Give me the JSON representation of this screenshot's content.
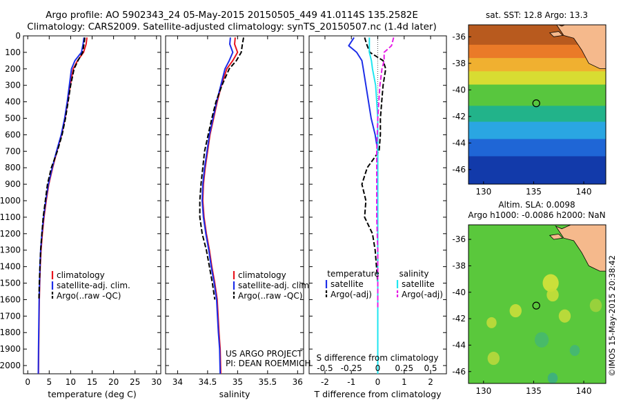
{
  "header": {
    "line1": "Argo profile: AO 5902343_24 05-May-2015 20150505_449 41.0114S 135.2582E",
    "line2": "Climatology: CARS2009. Satellite-adjusted climatology: synTS_20150507.nc (1.4d later)"
  },
  "credits": {
    "project": "US ARGO PROJECT",
    "pi": "PI: DEAN ROEMMICH",
    "stamp": "©IMOS 15-May-2015 20:38:42"
  },
  "colors": {
    "climatology": "#e8141e",
    "satellite": "#1c2de8",
    "argo": "#000000",
    "sal_satellite": "#1ee6f0",
    "sal_argo": "#e61ee6",
    "land": "#f5b98c",
    "background": "#ffffff"
  },
  "chart_data": [
    {
      "type": "line",
      "name": "temperature-profile",
      "xlabel": "temperature (deg C)",
      "xlim": [
        -1,
        31
      ],
      "xticks": [
        0,
        5,
        10,
        15,
        20,
        25,
        30
      ],
      "xtick_labels": [
        "0",
        "5",
        "10",
        "15",
        "20",
        "25",
        "30"
      ],
      "ylim": [
        2050,
        0
      ],
      "yticks": [
        0,
        100,
        200,
        300,
        400,
        500,
        600,
        700,
        800,
        900,
        1000,
        1100,
        1200,
        1300,
        1400,
        1500,
        1600,
        1700,
        1800,
        1900,
        2000
      ],
      "ytick_labels": [
        "0",
        "100",
        "200",
        "300",
        "400",
        "500",
        "600",
        "700",
        "800",
        "900",
        "1000",
        "1100",
        "1200",
        "1300",
        "1400",
        "1500",
        "1600",
        "1700",
        "1800",
        "1900",
        "2000"
      ],
      "legend": {
        "placement": "lower-center",
        "entries": [
          "climatology",
          "satellite-adj. clim.",
          "Argo(..raw -QC)"
        ]
      },
      "series": [
        {
          "name": "climatology",
          "style": "solid",
          "color": "#e8141e",
          "x": [
            13.8,
            13.6,
            13.0,
            11.6,
            10.6,
            9.9,
            9.3,
            8.7,
            7.9,
            6.8,
            5.8,
            4.9,
            4.3,
            3.8,
            3.4,
            3.1,
            2.9,
            2.8,
            2.7,
            2.6,
            2.55,
            2.5
          ],
          "y": [
            10,
            50,
            100,
            150,
            200,
            300,
            400,
            500,
            600,
            700,
            800,
            900,
            1000,
            1100,
            1200,
            1300,
            1400,
            1500,
            1600,
            1800,
            1900,
            2050
          ]
        },
        {
          "name": "satellite-adj. clim.",
          "style": "solid",
          "color": "#1c2de8",
          "x": [
            13.1,
            12.9,
            12.5,
            11.0,
            10.2,
            9.7,
            9.2,
            8.6,
            7.8,
            6.7,
            5.7,
            4.8,
            4.2,
            3.7,
            3.3,
            3.0,
            2.85,
            2.75,
            2.65,
            2.55,
            2.5,
            2.45
          ],
          "y": [
            10,
            50,
            100,
            150,
            200,
            300,
            400,
            500,
            600,
            700,
            800,
            900,
            1000,
            1100,
            1200,
            1300,
            1400,
            1500,
            1600,
            1800,
            1900,
            2050
          ]
        },
        {
          "name": "Argo(..raw -QC)",
          "style": "dashed",
          "color": "#000000",
          "x": [
            13.3,
            13.1,
            12.8,
            11.7,
            10.8,
            10.0,
            9.4,
            8.8,
            8.0,
            6.9,
            5.5,
            4.6,
            4.1,
            3.6,
            3.3,
            3.0,
            2.85,
            2.7,
            2.6
          ],
          "y": [
            10,
            50,
            100,
            150,
            200,
            300,
            400,
            500,
            600,
            700,
            800,
            900,
            1000,
            1100,
            1200,
            1300,
            1400,
            1500,
            1600
          ]
        }
      ]
    },
    {
      "type": "line",
      "name": "salinity-profile",
      "xlabel": "salinity",
      "xlim": [
        33.8,
        36.1
      ],
      "xticks": [
        34,
        34.5,
        35,
        35.5,
        36
      ],
      "xtick_labels": [
        "34",
        "34.5",
        "35",
        "35.5",
        "36"
      ],
      "ylim": [
        2050,
        0
      ],
      "legend": {
        "placement": "lower-center",
        "entries": [
          "climatology",
          "satellite-adj. clim.",
          "Argo(..raw -QC)"
        ]
      },
      "series": [
        {
          "name": "climatology",
          "style": "solid",
          "color": "#e8141e",
          "x": [
            34.96,
            34.95,
            35.0,
            34.92,
            34.82,
            34.73,
            34.66,
            34.6,
            34.54,
            34.5,
            34.46,
            34.43,
            34.42,
            34.44,
            34.48,
            34.53,
            34.57,
            34.62,
            34.66,
            34.69,
            34.71,
            34.72
          ],
          "y": [
            10,
            50,
            100,
            150,
            200,
            300,
            400,
            500,
            600,
            700,
            800,
            900,
            1000,
            1100,
            1200,
            1300,
            1400,
            1500,
            1600,
            1800,
            1900,
            2050
          ]
        },
        {
          "name": "satellite-adj. clim.",
          "style": "solid",
          "color": "#1c2de8",
          "x": [
            34.88,
            34.87,
            34.92,
            34.86,
            34.79,
            34.72,
            34.65,
            34.59,
            34.53,
            34.49,
            34.45,
            34.42,
            34.41,
            34.43,
            34.47,
            34.52,
            34.56,
            34.61,
            34.65,
            34.68,
            34.7,
            34.71
          ],
          "y": [
            10,
            50,
            100,
            150,
            200,
            300,
            400,
            500,
            600,
            700,
            800,
            900,
            1000,
            1100,
            1200,
            1300,
            1400,
            1500,
            1600,
            1800,
            1900,
            2050
          ]
        },
        {
          "name": "Argo(..raw -QC)",
          "style": "dashed",
          "color": "#000000",
          "x": [
            35.1,
            35.08,
            35.06,
            34.98,
            34.86,
            34.74,
            34.64,
            34.57,
            34.51,
            34.45,
            34.42,
            34.39,
            34.37,
            34.37,
            34.41,
            34.48,
            34.53,
            34.58,
            34.62
          ],
          "y": [
            10,
            50,
            100,
            150,
            200,
            300,
            400,
            500,
            600,
            700,
            800,
            900,
            1000,
            1100,
            1200,
            1300,
            1400,
            1500,
            1600
          ]
        }
      ]
    },
    {
      "type": "line",
      "name": "difference-profile",
      "xlabel": "T difference from climatology",
      "xlabel2": "S difference from climatology",
      "xlim": [
        -2.6,
        2.6
      ],
      "xticks": [
        -2,
        -1,
        0,
        1,
        2
      ],
      "xtick_labels": [
        "-2",
        "-1",
        "0",
        "1",
        "2"
      ],
      "xticks2": [
        -0.5,
        -0.25,
        0,
        0.25,
        0.5
      ],
      "xtick_labels2": [
        "-0.5",
        "-0.25",
        "0",
        "0.25",
        "0.5"
      ],
      "ylim": [
        2050,
        0
      ],
      "legend": {
        "placement": "lower-center",
        "group_titles": [
          "temperature",
          "salinity"
        ],
        "entries": [
          "satellite",
          "Argo(-adj)",
          "satellite",
          "Argo(-adj)"
        ]
      },
      "series": [
        {
          "name": "temperature satellite",
          "style": "solid",
          "color": "#1c2de8",
          "x": [
            -0.9,
            -1.1,
            -0.8,
            -0.6,
            -0.55,
            -0.45,
            -0.35,
            -0.25,
            -0.1,
            0.0,
            0.0,
            0.0,
            0.0,
            0.0,
            0.0,
            0.0,
            0.0,
            0.0,
            0.0,
            0.0,
            0.0
          ],
          "y": [
            10,
            60,
            100,
            150,
            200,
            300,
            400,
            500,
            600,
            700,
            800,
            900,
            1000,
            1100,
            1200,
            1400,
            1600,
            1800,
            1900,
            2000,
            2050
          ]
        },
        {
          "name": "temperature Argo(-adj)",
          "style": "dashed",
          "color": "#000000",
          "x": [
            -0.5,
            -0.4,
            -0.3,
            0.2,
            0.3,
            0.2,
            0.15,
            0.1,
            0.1,
            0.05,
            -0.4,
            -0.6,
            -0.45,
            -0.5,
            -0.2,
            -0.1,
            -0.05,
            0.0,
            0.0,
            0.0
          ],
          "y": [
            10,
            60,
            100,
            150,
            200,
            300,
            400,
            500,
            600,
            700,
            800,
            900,
            1000,
            1100,
            1200,
            1300,
            1400,
            1500,
            1600,
            1700
          ]
        },
        {
          "name": "salinity satellite",
          "style": "solid",
          "color": "#1ee6f0",
          "x": [
            -0.08,
            -0.08,
            -0.08,
            -0.06,
            -0.05,
            -0.02,
            -0.01,
            0.0,
            0.0,
            0.0,
            0.0,
            0.0,
            0.0,
            0.0,
            0.0
          ],
          "y": [
            10,
            60,
            100,
            150,
            200,
            300,
            400,
            500,
            700,
            900,
            1100,
            1300,
            1600,
            1900,
            2050
          ]
        },
        {
          "name": "salinity Argo(-adj)",
          "style": "dashed",
          "color": "#e61ee6",
          "x": [
            0.15,
            0.13,
            0.06,
            0.06,
            0.04,
            0.02,
            0.01,
            0.0,
            -0.01,
            -0.01,
            -0.01,
            0.0,
            0.0,
            0.0,
            0.0
          ],
          "y": [
            10,
            60,
            100,
            150,
            200,
            300,
            400,
            500,
            700,
            900,
            1100,
            1300,
            1500,
            1600,
            1650
          ]
        }
      ]
    },
    {
      "type": "heatmap",
      "name": "sst-map",
      "title": "sat. SST: 12.8 Argo: 13.3",
      "xlim": [
        128.5,
        142.2
      ],
      "ylim": [
        -47.1,
        -35.1
      ],
      "xticks": [
        130,
        135,
        140
      ],
      "xtick_labels": [
        "130",
        "135",
        "140"
      ],
      "yticks": [
        -36,
        -38,
        -40,
        -42,
        -44,
        -46
      ],
      "ytick_labels": [
        "-36",
        "-38",
        "-40",
        "-42",
        "-44",
        "-46"
      ],
      "marker": {
        "lon": 135.26,
        "lat": -41.01
      },
      "color_bands": [
        {
          "lat_from": -35.1,
          "lat_to": -36.6,
          "color": "#b85a1e"
        },
        {
          "lat_from": -36.6,
          "lat_to": -37.6,
          "color": "#ea7a28"
        },
        {
          "lat_from": -37.6,
          "lat_to": -38.6,
          "color": "#f0b030"
        },
        {
          "lat_from": -38.6,
          "lat_to": -39.6,
          "color": "#d8dc32"
        },
        {
          "lat_from": -39.6,
          "lat_to": -41.2,
          "color": "#58c63e"
        },
        {
          "lat_from": -41.2,
          "lat_to": -42.4,
          "color": "#22b38a"
        },
        {
          "lat_from": -42.4,
          "lat_to": -43.7,
          "color": "#2aa6e2"
        },
        {
          "lat_from": -43.7,
          "lat_to": -45.0,
          "color": "#1f66d6"
        },
        {
          "lat_from": -45.0,
          "lat_to": -47.1,
          "color": "#123aaa"
        }
      ]
    },
    {
      "type": "heatmap",
      "name": "sla-map",
      "title": "Altim. SLA: 0.0098",
      "subtitle": "Argo h1000: -0.0086 h2000: NaN",
      "xlim": [
        128.5,
        142.2
      ],
      "ylim": [
        -46.9,
        -34.9
      ],
      "xticks": [
        130,
        135,
        140
      ],
      "xtick_labels": [
        "130",
        "135",
        "140"
      ],
      "yticks": [
        -36,
        -38,
        -40,
        -42,
        -44,
        -46
      ],
      "ytick_labels": [
        "-36",
        "-38",
        "-40",
        "-42",
        "-44",
        "-46"
      ],
      "marker": {
        "lon": 135.26,
        "lat": -41.01
      },
      "base_color": "#5ac83c",
      "features": [
        {
          "lon": 136.7,
          "lat": -39.3,
          "radius": 0.8,
          "color": "#d6e23a"
        },
        {
          "lon": 136.9,
          "lat": -40.2,
          "radius": 0.6,
          "color": "#c8de38"
        },
        {
          "lon": 133.2,
          "lat": -41.4,
          "radius": 0.6,
          "color": "#cade3a"
        },
        {
          "lon": 130.8,
          "lat": -42.3,
          "radius": 0.5,
          "color": "#c0da3a"
        },
        {
          "lon": 138.1,
          "lat": -41.8,
          "radius": 0.6,
          "color": "#c2dc3a"
        },
        {
          "lon": 135.8,
          "lat": -43.6,
          "radius": 0.7,
          "color": "#46b86e"
        },
        {
          "lon": 139.1,
          "lat": -44.4,
          "radius": 0.5,
          "color": "#44b676"
        },
        {
          "lon": 131.0,
          "lat": -45.0,
          "radius": 0.6,
          "color": "#b8d83c"
        },
        {
          "lon": 136.9,
          "lat": -46.5,
          "radius": 0.5,
          "color": "#3cae82"
        },
        {
          "lon": 141.2,
          "lat": -41.0,
          "radius": 0.6,
          "color": "#9ed23c"
        }
      ]
    }
  ]
}
